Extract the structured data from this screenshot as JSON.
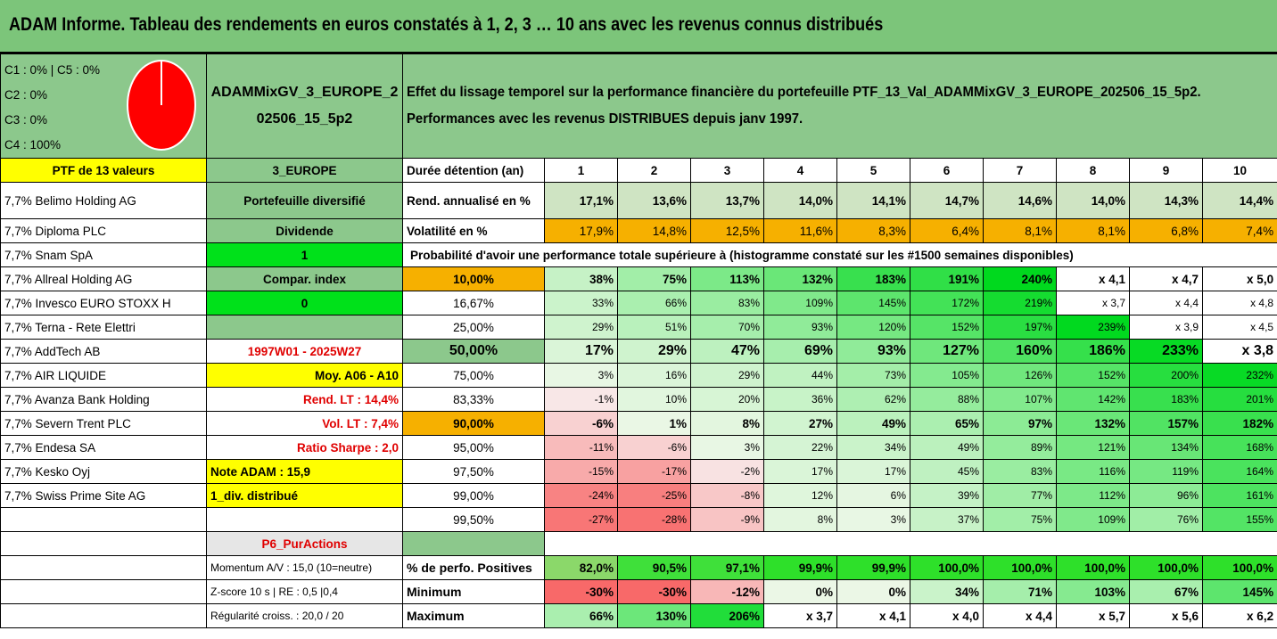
{
  "title": "ADAM Informe. Tableau des rendements en euros constatés à 1, 2, 3 … 10 ans avec les revenus connus distribués",
  "classes": [
    "C1 : 0% | C5 : 0%",
    "C2 : 0%",
    "C3 : 0%",
    "C4 : 100%"
  ],
  "portfolio_name": "ADAMMixGV_3_EUROPE_202506_15_5p2",
  "description": [
    "Effet du lissage temporel sur la performance financière du portefeuille PTF_13_Val_ADAMMixGV_3_EUROPE_202506_15_5p2.",
    "Performances avec les revenus DISTRIBUES depuis janv 1997."
  ],
  "ptf_label": "PTF de 13 valeurs",
  "zone": "3_EUROPE",
  "holdings": [
    "7,7% Belimo Holding AG",
    "7,7% Diploma PLC",
    "7,7% Snam SpA",
    "7,7% Allreal Holding AG",
    "7,7% Invesco EURO STOXX H",
    "7,7% Terna - Rete Elettri",
    "7,7% AddTech AB",
    "7,7% AIR LIQUIDE",
    "7,7% Avanza Bank Holding",
    "7,7% Severn Trent PLC",
    "7,7% Endesa SA",
    "7,7% Kesko Oyj",
    "7,7% Swiss Prime Site AG"
  ],
  "side": [
    "Portefeuille diversifié",
    "Dividende",
    "1",
    "Compar. index",
    "0",
    "",
    "1997W01 - 2025W27",
    "Moy. A06 - A10",
    "Rend. LT : 14,4%",
    "Vol. LT : 7,4%",
    "Ratio Sharpe : 2,0",
    "Note ADAM : 15,9",
    "1_div. distribué"
  ],
  "duration_label": "Durée détention (an)",
  "years": [
    "1",
    "2",
    "3",
    "4",
    "5",
    "6",
    "7",
    "8",
    "9",
    "10"
  ],
  "rend_label": "Rend. annualisé en %",
  "rend": [
    "17,1%",
    "13,6%",
    "13,7%",
    "14,0%",
    "14,1%",
    "14,7%",
    "14,6%",
    "14,0%",
    "14,3%",
    "14,4%"
  ],
  "vol_label": "Volatilité en %",
  "vol": [
    "17,9%",
    "14,8%",
    "12,5%",
    "11,6%",
    "8,3%",
    "6,4%",
    "8,1%",
    "8,1%",
    "6,8%",
    "7,4%"
  ],
  "prob_title": "Probabilité d'avoir une performance totale supérieure à (histogramme constaté sur les #1500 semaines disponibles)",
  "prob_rows": [
    {
      "p": "10,00%",
      "v": [
        "38%",
        "75%",
        "113%",
        "132%",
        "183%",
        "191%",
        "240%",
        "x 4,1",
        "x 4,7",
        "x 5,0"
      ]
    },
    {
      "p": "16,67%",
      "v": [
        "33%",
        "66%",
        "83%",
        "109%",
        "145%",
        "172%",
        "219%",
        "x 3,7",
        "x 4,4",
        "x 4,8"
      ]
    },
    {
      "p": "25,00%",
      "v": [
        "29%",
        "51%",
        "70%",
        "93%",
        "120%",
        "152%",
        "197%",
        "239%",
        "x 3,9",
        "x 4,5"
      ]
    },
    {
      "p": "50,00%",
      "v": [
        "17%",
        "29%",
        "47%",
        "69%",
        "93%",
        "127%",
        "160%",
        "186%",
        "233%",
        "x 3,8"
      ]
    },
    {
      "p": "75,00%",
      "v": [
        "3%",
        "16%",
        "29%",
        "44%",
        "73%",
        "105%",
        "126%",
        "152%",
        "200%",
        "232%"
      ]
    },
    {
      "p": "83,33%",
      "v": [
        "-1%",
        "10%",
        "20%",
        "36%",
        "62%",
        "88%",
        "107%",
        "142%",
        "183%",
        "201%"
      ]
    },
    {
      "p": "90,00%",
      "v": [
        "-6%",
        "1%",
        "8%",
        "27%",
        "49%",
        "65%",
        "97%",
        "132%",
        "157%",
        "182%"
      ]
    },
    {
      "p": "95,00%",
      "v": [
        "-11%",
        "-6%",
        "3%",
        "22%",
        "34%",
        "49%",
        "89%",
        "121%",
        "134%",
        "168%"
      ]
    },
    {
      "p": "97,50%",
      "v": [
        "-15%",
        "-17%",
        "-2%",
        "17%",
        "17%",
        "45%",
        "83%",
        "116%",
        "119%",
        "164%"
      ]
    },
    {
      "p": "99,00%",
      "v": [
        "-24%",
        "-25%",
        "-8%",
        "12%",
        "6%",
        "39%",
        "77%",
        "112%",
        "96%",
        "161%"
      ]
    },
    {
      "p": "99,50%",
      "v": [
        "-27%",
        "-28%",
        "-9%",
        "8%",
        "3%",
        "37%",
        "75%",
        "109%",
        "76%",
        "155%"
      ]
    }
  ],
  "p6": "P6_PurActions",
  "momentum": "Momentum A/V : 15,0 (10=neutre)",
  "zscore": "Z-score 10 s | RE : 0,5 |0,4",
  "regularite": "Régularité croiss. : 20,0 / 20",
  "pos_label": "% de perfo. Positives",
  "pos": [
    "82,0%",
    "90,5%",
    "97,1%",
    "99,9%",
    "99,9%",
    "100,0%",
    "100,0%",
    "100,0%",
    "100,0%",
    "100,0%"
  ],
  "min_label": "Minimum",
  "min": [
    "-30%",
    "-30%",
    "-12%",
    "0%",
    "0%",
    "34%",
    "71%",
    "103%",
    "67%",
    "145%"
  ],
  "max_label": "Maximum",
  "max": [
    "66%",
    "130%",
    "206%",
    "x 3,7",
    "x 4,1",
    "x 4,0",
    "x 4,4",
    "x 5,7",
    "x 5,6",
    "x 6,2"
  ],
  "colors": {
    "header_green": "#7cc57a",
    "yellow": "#ffff00",
    "orange": "#f6b000",
    "bright_green": "#00e11a",
    "red": "#ff0000"
  }
}
